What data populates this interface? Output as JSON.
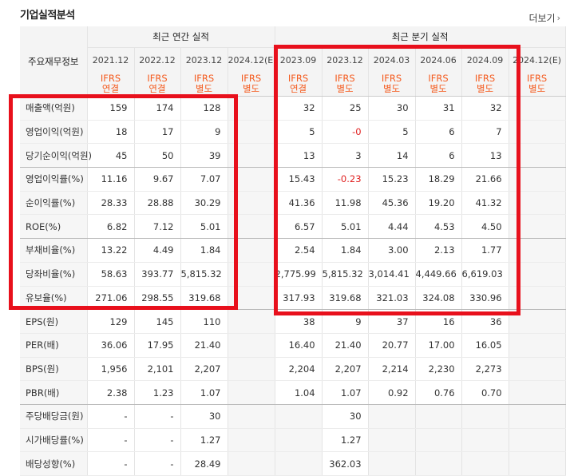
{
  "header": {
    "title": "기업실적분석",
    "more_label": "더보기"
  },
  "table": {
    "row_header_label": "주요재무정보",
    "groups": [
      "최근 연간 실적",
      "최근 분기 실적"
    ],
    "periods": [
      "2021.12",
      "2022.12",
      "2023.12",
      "2024.12(E)",
      "2023.09",
      "2023.12",
      "2024.03",
      "2024.06",
      "2024.09",
      "2024.12(E)"
    ],
    "standards": [
      [
        "IFRS",
        "연결"
      ],
      [
        "IFRS",
        "연결"
      ],
      [
        "IFRS",
        "별도"
      ],
      [
        "IFRS",
        "별도"
      ],
      [
        "IFRS",
        "연결"
      ],
      [
        "IFRS",
        "별도"
      ],
      [
        "IFRS",
        "별도"
      ],
      [
        "IFRS",
        "별도"
      ],
      [
        "IFRS",
        "별도"
      ],
      [
        "IFRS",
        "별도"
      ]
    ],
    "rows": [
      {
        "label": "매출액(억원)",
        "values": [
          "159",
          "174",
          "128",
          "",
          "32",
          "25",
          "30",
          "31",
          "32",
          ""
        ]
      },
      {
        "label": "영업이익(억원)",
        "values": [
          "18",
          "17",
          "9",
          "",
          "5",
          "-0",
          "5",
          "6",
          "7",
          ""
        ]
      },
      {
        "label": "당기순이익(억원)",
        "values": [
          "45",
          "50",
          "39",
          "",
          "13",
          "3",
          "14",
          "6",
          "13",
          ""
        ]
      },
      {
        "label": "영업이익률(%)",
        "values": [
          "11.16",
          "9.67",
          "7.07",
          "",
          "15.43",
          "-0.23",
          "15.23",
          "18.29",
          "21.66",
          ""
        ]
      },
      {
        "label": "순이익률(%)",
        "values": [
          "28.33",
          "28.88",
          "30.29",
          "",
          "41.36",
          "11.98",
          "45.36",
          "19.20",
          "41.32",
          ""
        ]
      },
      {
        "label": "ROE(%)",
        "values": [
          "6.82",
          "7.12",
          "5.01",
          "",
          "6.57",
          "5.01",
          "4.44",
          "4.53",
          "4.50",
          ""
        ]
      },
      {
        "label": "부채비율(%)",
        "values": [
          "13.22",
          "4.49",
          "1.84",
          "",
          "2.54",
          "1.84",
          "3.00",
          "2.13",
          "1.77",
          ""
        ]
      },
      {
        "label": "당좌비율(%)",
        "values": [
          "58.63",
          "393.77",
          "5,815.32",
          "",
          "2,775.99",
          "5,815.32",
          "3,014.41",
          "4,449.66",
          "6,619.03",
          ""
        ]
      },
      {
        "label": "유보율(%)",
        "values": [
          "271.06",
          "298.55",
          "319.68",
          "",
          "317.93",
          "319.68",
          "321.03",
          "324.08",
          "330.96",
          ""
        ]
      },
      {
        "label": "EPS(원)",
        "values": [
          "129",
          "145",
          "110",
          "",
          "38",
          "9",
          "37",
          "16",
          "36",
          ""
        ]
      },
      {
        "label": "PER(배)",
        "values": [
          "36.06",
          "17.95",
          "21.40",
          "",
          "16.40",
          "21.40",
          "20.77",
          "17.00",
          "16.05",
          ""
        ]
      },
      {
        "label": "BPS(원)",
        "values": [
          "1,956",
          "2,101",
          "2,207",
          "",
          "2,204",
          "2,207",
          "2,214",
          "2,230",
          "2,273",
          ""
        ]
      },
      {
        "label": "PBR(배)",
        "values": [
          "2.38",
          "1.23",
          "1.07",
          "",
          "1.04",
          "1.07",
          "0.92",
          "0.76",
          "0.70",
          ""
        ]
      },
      {
        "label": "주당배당금(원)",
        "values": [
          "-",
          "-",
          "30",
          "",
          "",
          "30",
          "",
          "",
          "",
          ""
        ]
      },
      {
        "label": "시가배당률(%)",
        "values": [
          "-",
          "-",
          "1.27",
          "",
          "",
          "1.27",
          "",
          "",
          "",
          ""
        ]
      },
      {
        "label": "배당성향(%)",
        "values": [
          "-",
          "-",
          "28.49",
          "",
          "",
          "362.03",
          "",
          "",
          "",
          ""
        ]
      }
    ]
  },
  "colors": {
    "accent_orange": "#f45b1f",
    "negative_red": "#e02020",
    "highlight_box_red": "#e8101c"
  }
}
